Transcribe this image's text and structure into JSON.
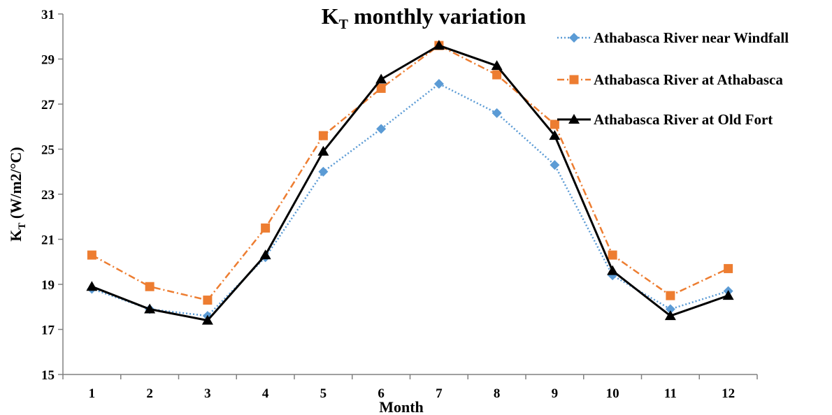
{
  "chart_data": {
    "type": "line",
    "title": {
      "main": "K",
      "sub": "T",
      "rest": " monthly variation"
    },
    "xlabel": "Month",
    "ylabel": {
      "main": "K",
      "sub": "T",
      "rest": " (W/m2/°C)"
    },
    "categories": [
      "1",
      "2",
      "3",
      "4",
      "5",
      "6",
      "7",
      "8",
      "9",
      "10",
      "11",
      "12"
    ],
    "ylim": [
      15,
      31
    ],
    "yticks": [
      "15",
      "17",
      "19",
      "21",
      "23",
      "25",
      "27",
      "29",
      "31"
    ],
    "grid": false,
    "legend_position": "top-right",
    "series": [
      {
        "name": "Athabasca River near Windfall",
        "color": "#5b9bd5",
        "marker": "diamond",
        "dash": "dotted",
        "values": [
          18.8,
          17.9,
          17.6,
          20.2,
          24.0,
          25.9,
          27.9,
          26.6,
          24.3,
          19.4,
          17.9,
          18.7
        ]
      },
      {
        "name": "Athabasca River at Athabasca",
        "color": "#ed7d31",
        "marker": "square",
        "dash": "dashdot",
        "values": [
          20.3,
          18.9,
          18.3,
          21.5,
          25.6,
          27.7,
          29.6,
          28.3,
          26.1,
          20.3,
          18.5,
          19.7
        ]
      },
      {
        "name": "Athabasca River at Old Fort",
        "color": "#000000",
        "marker": "triangle",
        "dash": "solid",
        "values": [
          18.9,
          17.9,
          17.4,
          20.3,
          24.9,
          28.1,
          29.6,
          28.7,
          25.6,
          19.6,
          17.6,
          18.5
        ]
      }
    ]
  }
}
